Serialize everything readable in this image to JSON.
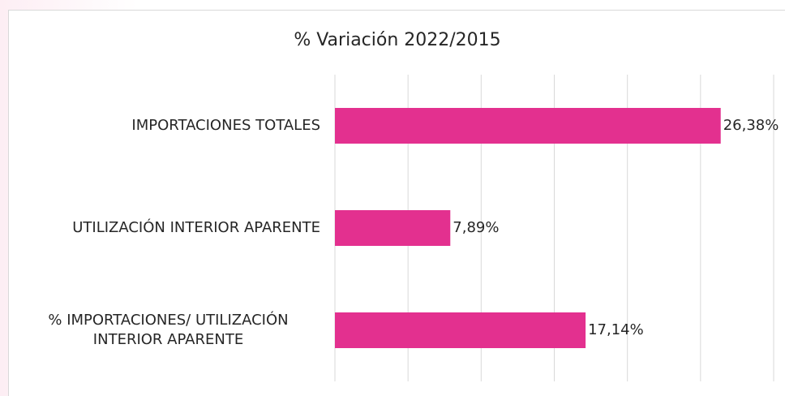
{
  "chart_data": {
    "type": "bar",
    "orientation": "horizontal",
    "title": "% Variación 2022/2015",
    "categories": [
      "IMPORTACIONES TOTALES",
      "UTILIZACIÓN INTERIOR APARENTE",
      "% IMPORTACIONES/ UTILIZACIÓN INTERIOR APARENTE"
    ],
    "values": [
      26.38,
      7.89,
      17.14
    ],
    "value_labels": [
      "26,38%",
      "7,89%",
      "17,14%"
    ],
    "color": "#e3308f",
    "xlim": [
      0,
      30
    ],
    "xticks": [
      0,
      5,
      10,
      15,
      20,
      25,
      30
    ],
    "grid": true
  }
}
